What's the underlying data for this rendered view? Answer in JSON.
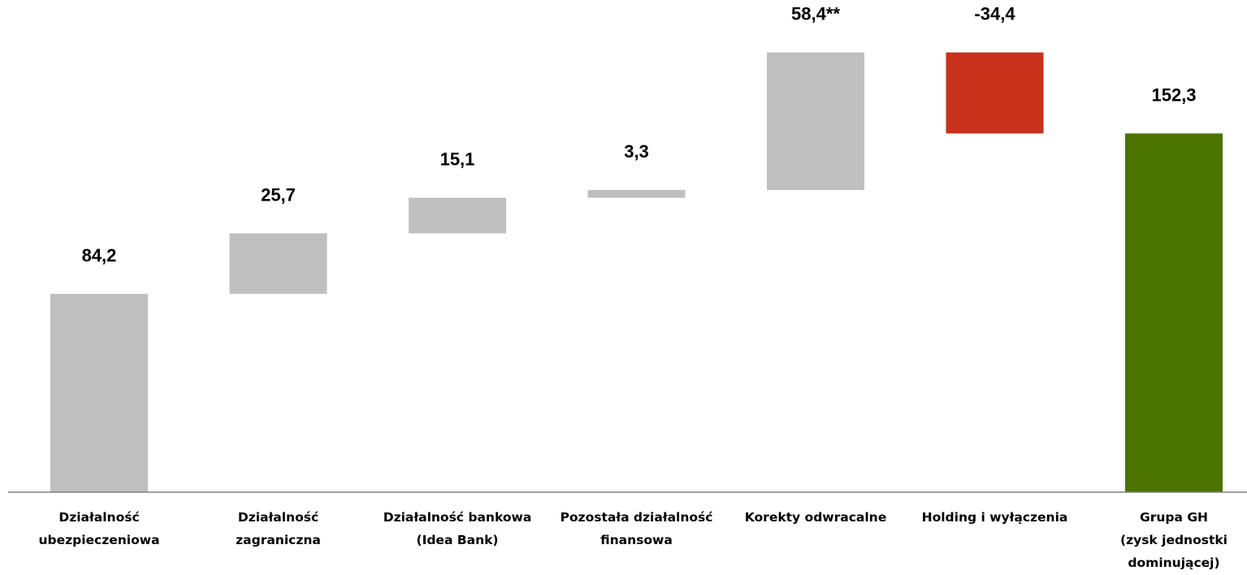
{
  "chart_data": {
    "type": "waterfall",
    "title": "",
    "xlabel": "",
    "ylabel": "",
    "ylim": [
      0,
      185
    ],
    "grid": false,
    "legend": "none",
    "bars": [
      {
        "category": [
          "Działalność",
          "ubezpieczeniowa"
        ],
        "value": 84.2,
        "base": 0,
        "label": "84,2",
        "kind": "total",
        "color": "#bfbfbf"
      },
      {
        "category": [
          "Działalność",
          "zagraniczna"
        ],
        "value": 25.7,
        "base": 84.2,
        "label": "25,7",
        "kind": "increase",
        "color": "#bfbfbf"
      },
      {
        "category": [
          "Działalność bankowa",
          "(Idea Bank)"
        ],
        "value": 15.1,
        "base": 109.9,
        "label": "15,1",
        "kind": "increase",
        "color": "#bfbfbf"
      },
      {
        "category": [
          "Pozostała działalność",
          "finansowa"
        ],
        "value": 3.3,
        "base": 125.0,
        "label": "3,3",
        "kind": "increase",
        "color": "#bfbfbf"
      },
      {
        "category": [
          "Korekty odwracalne"
        ],
        "value": 58.4,
        "base": 128.3,
        "label": "58,4**",
        "kind": "increase",
        "color": "#bfbfbf"
      },
      {
        "category": [
          "Holding i wyłączenia"
        ],
        "value": -34.4,
        "base": 186.7,
        "label": "-34,4",
        "kind": "decrease",
        "color": "#c9311b"
      },
      {
        "category": [
          "Grupa GH",
          "(zysk jednostki",
          "dominującej)"
        ],
        "value": 152.3,
        "base": 0,
        "label": "152,3",
        "kind": "total",
        "color": "#4a7300"
      }
    ],
    "axis_color": "#808080"
  }
}
